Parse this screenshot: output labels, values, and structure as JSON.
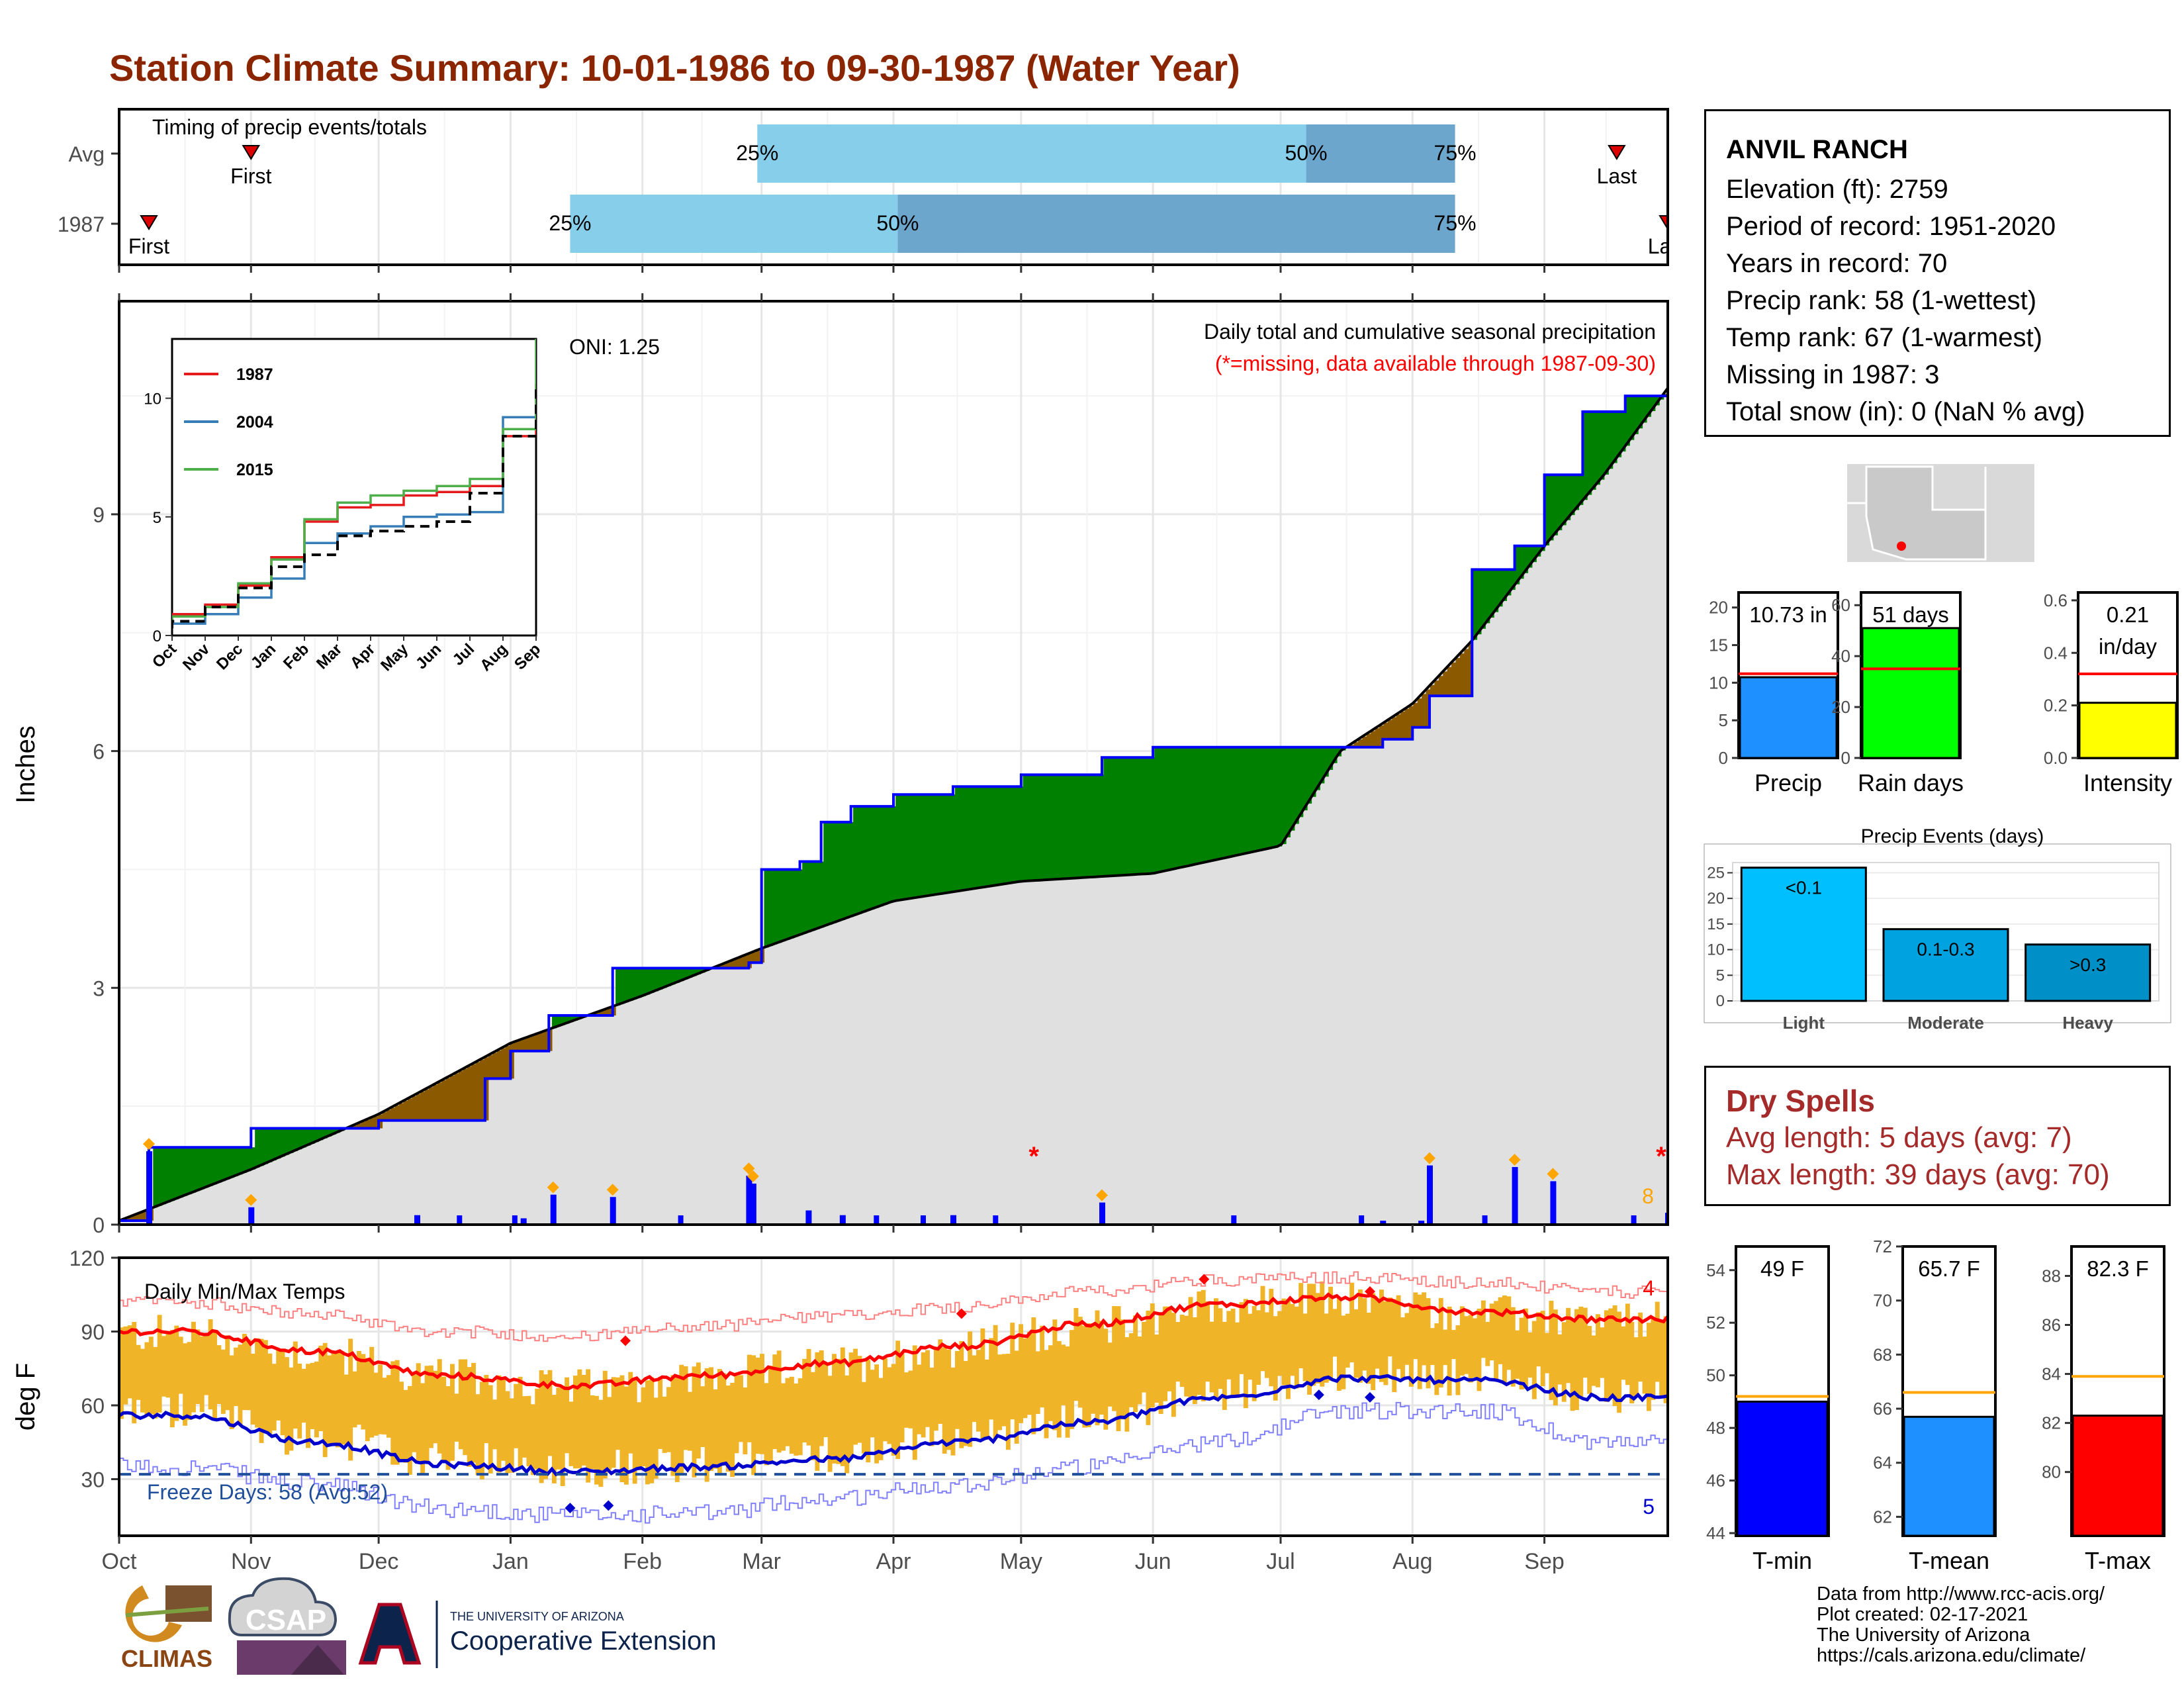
{
  "title": "Station Climate Summary: 10-01-1986 to 09-30-1987 (Water Year)",
  "timing": {
    "label": "Timing of precip events/totals",
    "rows": [
      "Avg",
      "1987"
    ],
    "avg": {
      "first": "First",
      "last": "Last",
      "p25": "25%",
      "p50": "50%",
      "p75": "75%"
    },
    "y1987": {
      "first": "First",
      "last": "Last",
      "p25": "25%",
      "p50": "50%",
      "p75": "75%"
    }
  },
  "precip_panel": {
    "ylabel": "Inches",
    "oni": "ONI: 1.25",
    "subtitle": "Daily total and cumulative seasonal precipitation",
    "missing_note": "(*=missing, data available through 1987-09-30)",
    "max_count_label": "8",
    "y_ticks": [
      "0",
      "3",
      "6",
      "9"
    ],
    "inset_legend": [
      "1987",
      "2004",
      "2015"
    ],
    "inset_y_ticks": [
      "0",
      "5",
      "10"
    ],
    "inset_x_ticks": [
      "Oct",
      "Nov",
      "Dec",
      "Jan",
      "Feb",
      "Mar",
      "Apr",
      "May",
      "Jun",
      "Jul",
      "Aug",
      "Sep"
    ]
  },
  "temp_panel": {
    "ylabel": "deg F",
    "label": "Daily Min/Max Temps",
    "freeze": "Freeze Days: 58 (Avg:52)",
    "max_records": "4",
    "min_records": "5",
    "y_ticks": [
      "30",
      "60",
      "90",
      "120"
    ]
  },
  "months": [
    "Oct",
    "Nov",
    "Dec",
    "Jan",
    "Feb",
    "Mar",
    "Apr",
    "May",
    "Jun",
    "Jul",
    "Aug",
    "Sep"
  ],
  "station": {
    "name": "ANVIL RANCH",
    "lines": [
      "Elevation (ft): 2759",
      "Period of record: 1951-2020",
      "Years in record: 70",
      "Precip rank: 58 (1-wettest)",
      "Temp rank: 67 (1-warmest)",
      "Missing in 1987: 3",
      "Total snow (in): 0 (NaN % avg)"
    ]
  },
  "mini_bars": [
    {
      "label": "Precip",
      "value_text": "10.73 in",
      "ticks": [
        "0",
        "5",
        "10",
        "15",
        "20"
      ],
      "color": "#1e90ff"
    },
    {
      "label": "Rain days",
      "value_text": "51 days",
      "ticks": [
        "0",
        "20",
        "40",
        "60"
      ],
      "color": "#00ff00"
    },
    {
      "label": "Intensity",
      "value_text_1": "0.21",
      "value_text_2": "in/day",
      "ticks": [
        "0.0",
        "0.2",
        "0.4",
        "0.6"
      ],
      "color": "#ffff00"
    }
  ],
  "precip_events": {
    "title": "Precip Events (days)",
    "ticks": [
      "0",
      "5",
      "10",
      "15",
      "20",
      "25"
    ],
    "bars": [
      {
        "cat": "Light",
        "label": "<0.1"
      },
      {
        "cat": "Moderate",
        "label": "0.1-0.3"
      },
      {
        "cat": "Heavy",
        "label": ">0.3"
      }
    ]
  },
  "dry_spells": {
    "title": "Dry Spells",
    "avg": "Avg length: 5 days (avg: 7)",
    "max": "Max length: 39 days (avg: 70)"
  },
  "temp_bars": [
    {
      "label": "T-min",
      "value_text": "49 F",
      "ticks": [
        "44",
        "46",
        "48",
        "50",
        "52",
        "54"
      ],
      "color": "#0000ff"
    },
    {
      "label": "T-mean",
      "value_text": "65.7 F",
      "ticks": [
        "62",
        "64",
        "66",
        "68",
        "70",
        "72"
      ],
      "color": "#1e90ff"
    },
    {
      "label": "T-max",
      "value_text": "82.3 F",
      "ticks": [
        "80",
        "82",
        "84",
        "86",
        "88"
      ],
      "color": "#ff0000"
    }
  ],
  "credits": [
    "Data from http://www.rcc-acis.org/",
    "Plot created: 02-17-2021",
    "The University of Arizona",
    "https://cals.arizona.edu/climate/"
  ],
  "logos": {
    "climas": "CLIMAS",
    "csap": "CSAP",
    "ua_small": "THE UNIVERSITY OF ARIZONA",
    "ua_big": "Cooperative Extension"
  },
  "chart_data": [
    {
      "type": "bar",
      "title": "Timing of precip events/totals",
      "categories": [
        "Avg",
        "1987"
      ],
      "series": [
        {
          "name": "First",
          "values": [
            "1986-11-01",
            "1986-10-08"
          ]
        },
        {
          "name": "25%",
          "values": [
            "1987-02-28",
            "1987-01-15"
          ]
        },
        {
          "name": "50%",
          "values": [
            "1987-07-07",
            "1987-04-02"
          ]
        },
        {
          "name": "75%",
          "values": [
            "1987-08-11",
            "1987-08-11"
          ]
        },
        {
          "name": "Last",
          "values": [
            "1987-09-18",
            "1987-09-30"
          ]
        }
      ]
    },
    {
      "type": "area",
      "title": "Daily total and cumulative seasonal precipitation",
      "ylabel": "Inches",
      "ylim": [
        0,
        11.7
      ],
      "x_range": [
        "1986-10-01",
        "1987-09-30"
      ],
      "series": [
        {
          "name": "Cumulative 1987",
          "x": [
            "1986-10-01",
            "1986-10-08",
            "1986-11-01",
            "1986-12-01",
            "1986-12-26",
            "1987-01-01",
            "1987-01-10",
            "1987-01-25",
            "1987-02-26",
            "1987-03-01",
            "1987-03-10",
            "1987-03-15",
            "1987-03-22",
            "1987-04-01",
            "1987-04-15",
            "1987-05-01",
            "1987-05-20",
            "1987-06-01",
            "1987-07-15",
            "1987-07-25",
            "1987-08-01",
            "1987-08-05",
            "1987-08-15",
            "1987-08-25",
            "1987-09-01",
            "1987-09-10",
            "1987-09-20",
            "1987-09-30"
          ],
          "values": [
            0.05,
            0.98,
            1.22,
            1.32,
            1.85,
            2.2,
            2.65,
            3.25,
            3.32,
            4.5,
            4.6,
            5.1,
            5.3,
            5.45,
            5.55,
            5.7,
            5.92,
            6.05,
            6.05,
            6.15,
            6.3,
            6.7,
            8.3,
            8.6,
            9.5,
            10.3,
            10.5,
            10.8
          ]
        },
        {
          "name": "Cumulative average",
          "x": [
            "1986-10-01",
            "1986-11-01",
            "1986-12-01",
            "1987-01-01",
            "1987-02-01",
            "1987-03-01",
            "1987-04-01",
            "1987-05-01",
            "1987-06-01",
            "1987-07-01",
            "1987-07-15",
            "1987-08-01",
            "1987-08-15",
            "1987-09-01",
            "1987-09-15",
            "1987-09-30"
          ],
          "values": [
            0.05,
            0.7,
            1.4,
            2.3,
            2.9,
            3.5,
            4.1,
            4.35,
            4.45,
            4.8,
            6.0,
            6.6,
            7.4,
            8.6,
            9.5,
            10.6
          ]
        },
        {
          "name": "Daily precip",
          "x": [
            "1986-10-08",
            "1986-11-01",
            "1986-12-10",
            "1987-01-04",
            "1987-01-11",
            "1987-01-25",
            "1987-02-26",
            "1987-02-27",
            "1987-03-12",
            "1987-03-20",
            "1987-04-15",
            "1987-05-20",
            "1987-07-25",
            "1987-08-03",
            "1987-08-05",
            "1987-08-25",
            "1987-09-03",
            "1987-09-30"
          ],
          "values": [
            0.93,
            0.22,
            0.12,
            0.08,
            0.38,
            0.35,
            0.62,
            0.52,
            0.18,
            0.12,
            0.12,
            0.28,
            0.05,
            0.05,
            0.75,
            0.73,
            0.55,
            0.15
          ]
        }
      ]
    },
    {
      "type": "line",
      "title": "Daily Min/Max Temps",
      "ylabel": "deg F",
      "ylim": [
        7,
        120
      ],
      "x": [
        "Oct",
        "Nov",
        "Dec",
        "Jan",
        "Feb",
        "Mar",
        "Apr",
        "May",
        "Jun",
        "Jul",
        "Aug",
        "Sep"
      ],
      "series": [
        {
          "name": "Avg max",
          "values": [
            90,
            82,
            72,
            68,
            72,
            77,
            84,
            93,
            101,
            104,
            98,
            95
          ]
        },
        {
          "name": "Avg min",
          "values": [
            56,
            45,
            36,
            33,
            35,
            38,
            45,
            53,
            63,
            71,
            70,
            63
          ]
        },
        {
          "name": "Record max",
          "values": [
            102,
            97,
            90,
            88,
            92,
            96,
            100,
            106,
            111,
            112,
            110,
            106
          ]
        },
        {
          "name": "Record min",
          "values": [
            35,
            28,
            18,
            15,
            16,
            22,
            28,
            35,
            45,
            58,
            58,
            45
          ]
        }
      ]
    },
    {
      "type": "line",
      "title": "Inset cumulative precipitation",
      "ylim": [
        0,
        12.5
      ],
      "x": [
        "Oct",
        "Nov",
        "Dec",
        "Jan",
        "Feb",
        "Mar",
        "Apr",
        "May",
        "Jun",
        "Jul",
        "Aug",
        "Sep"
      ],
      "series": [
        {
          "name": "1987",
          "values": [
            0.9,
            1.3,
            2.1,
            3.3,
            4.8,
            5.4,
            5.5,
            5.9,
            6.05,
            6.3,
            8.4,
            10.6
          ]
        },
        {
          "name": "2004",
          "values": [
            0.5,
            0.9,
            1.6,
            2.4,
            3.9,
            4.3,
            4.6,
            5.0,
            5.1,
            5.2,
            9.2,
            10.4
          ]
        },
        {
          "name": "2015",
          "values": [
            0.8,
            1.2,
            2.2,
            3.2,
            4.9,
            5.6,
            5.9,
            6.1,
            6.3,
            6.6,
            8.7,
            12.5
          ]
        },
        {
          "name": "Average",
          "values": [
            0.6,
            1.2,
            2.0,
            2.9,
            3.4,
            4.2,
            4.4,
            4.6,
            4.8,
            6.0,
            8.4,
            10.6
          ]
        }
      ]
    },
    {
      "type": "bar",
      "title": "Precip",
      "categories": [
        "Precip"
      ],
      "values": [
        10.73
      ],
      "ylim": [
        0,
        22
      ],
      "reference": 11.2
    },
    {
      "type": "bar",
      "title": "Rain days",
      "categories": [
        "Rain days"
      ],
      "values": [
        51
      ],
      "ylim": [
        0,
        65
      ],
      "reference": 35
    },
    {
      "type": "bar",
      "title": "Intensity",
      "categories": [
        "Intensity"
      ],
      "values": [
        0.21
      ],
      "ylim": [
        0,
        0.63
      ],
      "reference": 0.32
    },
    {
      "type": "bar",
      "title": "Precip Events (days)",
      "categories": [
        "Light",
        "Moderate",
        "Heavy"
      ],
      "values": [
        26,
        14,
        11
      ],
      "ylim": [
        0,
        27
      ]
    },
    {
      "type": "bar",
      "title": "T-min",
      "categories": [
        "T-min"
      ],
      "values": [
        49
      ],
      "ylim": [
        43.9,
        54.9
      ],
      "reference": 49.2
    },
    {
      "type": "bar",
      "title": "T-mean",
      "categories": [
        "T-mean"
      ],
      "values": [
        65.7
      ],
      "ylim": [
        61.3,
        72
      ],
      "reference": 66.6
    },
    {
      "type": "bar",
      "title": "T-max",
      "categories": [
        "T-max"
      ],
      "values": [
        82.3
      ],
      "ylim": [
        77.4,
        89.2
      ],
      "reference": 83.9
    }
  ]
}
